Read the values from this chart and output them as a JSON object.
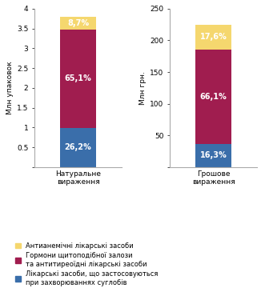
{
  "categories": [
    "Натуральне\nвираження",
    "Грошове\nвираження"
  ],
  "bar1_values": [
    0.994,
    2.474,
    0.332
  ],
  "bar2_values": [
    36.675,
    148.725,
    39.6
  ],
  "percentages_bar1": [
    "26,2%",
    "65,1%",
    "8,7%"
  ],
  "percentages_bar2": [
    "16,3%",
    "66,1%",
    "17,6%"
  ],
  "colors": [
    "#3a6eaa",
    "#a01d4f",
    "#f5d76e"
  ],
  "ylabel_left": "Млн упаковок",
  "ylabel_right": "Млн грн.",
  "ylim_left": [
    0,
    4
  ],
  "ylim_right": [
    0,
    250
  ],
  "yticks_left": [
    0,
    0.5,
    1,
    1.5,
    2,
    2.5,
    3,
    3.5,
    4
  ],
  "yticks_right": [
    0,
    50,
    100,
    150,
    200,
    250
  ],
  "legend_labels": [
    "Лікарські засоби, що застосовуються\nпри захворюваннях суглобів",
    "Гормони щитоподібної залози\nта антитиреоїдні лікарські засоби",
    "Антианемічні лікарські засоби"
  ],
  "bar_width": 0.45,
  "text_color_white": "#ffffff",
  "font_size_pct": 7.0,
  "font_size_label": 6.5,
  "font_size_legend": 6.0,
  "font_size_ylabel": 6.5,
  "font_size_tick": 6.5,
  "background_color": "#ffffff",
  "spine_color": "#aaaaaa"
}
